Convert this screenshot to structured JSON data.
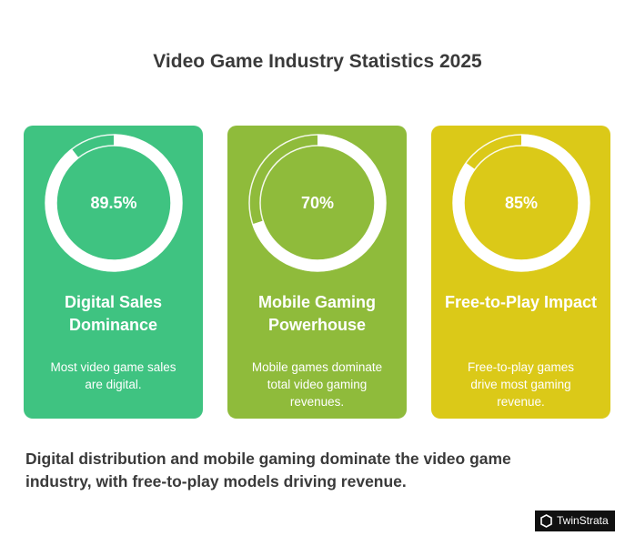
{
  "title": "Video Game Industry Statistics 2025",
  "chart_data": [
    {
      "type": "gauge",
      "title": "Digital Sales Dominance",
      "description": "Most video game sales are digital.",
      "values": [
        89.5
      ],
      "value_labels": [
        "89.5%"
      ],
      "ylim": [
        0,
        100
      ],
      "color": "#3fc381"
    },
    {
      "type": "gauge",
      "title": "Mobile Gaming Powerhouse",
      "description": "Mobile games dominate total video gaming revenues.",
      "values": [
        70
      ],
      "value_labels": [
        "70%"
      ],
      "ylim": [
        0,
        100
      ],
      "color": "#8fbb3b"
    },
    {
      "type": "gauge",
      "title": "Free-to-Play Impact",
      "description": "Free-to-play games drive most gaming revenue.",
      "values": [
        85
      ],
      "value_labels": [
        "85%"
      ],
      "ylim": [
        0,
        100
      ],
      "color": "#dbc918"
    }
  ],
  "summary": "Digital distribution and mobile gaming dominate the video game industry, with free-to-play models driving revenue.",
  "brand": "TwinStrata"
}
